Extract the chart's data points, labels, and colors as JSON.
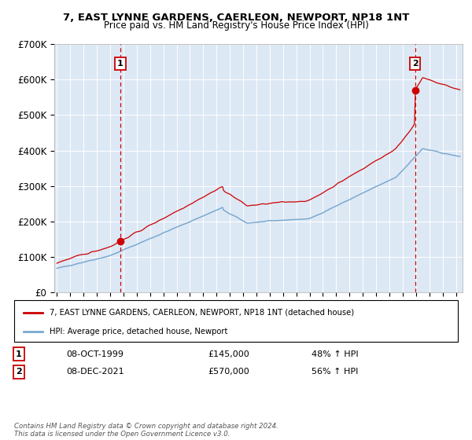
{
  "title": "7, EAST LYNNE GARDENS, CAERLEON, NEWPORT, NP18 1NT",
  "subtitle": "Price paid vs. HM Land Registry's House Price Index (HPI)",
  "ylim": [
    0,
    700000
  ],
  "yticks": [
    0,
    100000,
    200000,
    300000,
    400000,
    500000,
    600000,
    700000
  ],
  "ytick_labels": [
    "£0",
    "£100K",
    "£200K",
    "£300K",
    "£400K",
    "£500K",
    "£600K",
    "£700K"
  ],
  "xlim_start": 1994.8,
  "xlim_end": 2025.5,
  "background_color": "#dde8f5",
  "sale1": {
    "date_num": 1999.77,
    "price": 145000,
    "label": "1",
    "date_str": "08-OCT-1999",
    "hpi_pct": "48% ↑ HPI"
  },
  "sale2": {
    "date_num": 2021.93,
    "price": 570000,
    "label": "2",
    "date_str": "08-DEC-2021",
    "hpi_pct": "56% ↑ HPI"
  },
  "legend_entry1": "7, EAST LYNNE GARDENS, CAERLEON, NEWPORT, NP18 1NT (detached house)",
  "legend_entry2": "HPI: Average price, detached house, Newport",
  "footer": "Contains HM Land Registry data © Crown copyright and database right 2024.\nThis data is licensed under the Open Government Licence v3.0.",
  "red_color": "#cc0000",
  "blue_color": "#7aaad0"
}
